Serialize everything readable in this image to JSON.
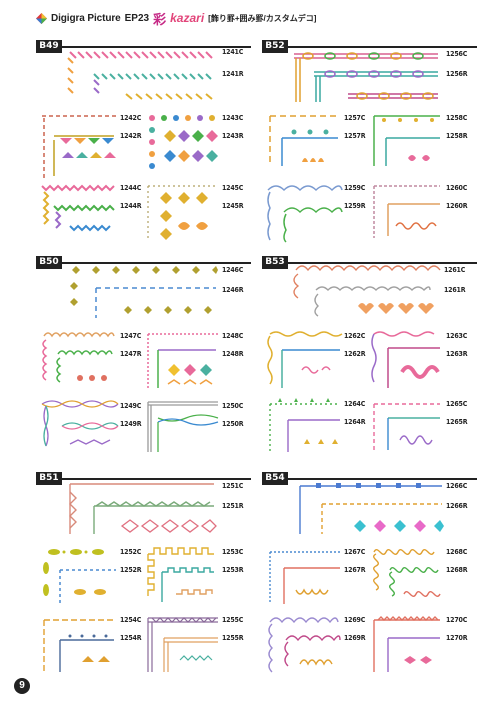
{
  "header": {
    "brand": "Digigra Picture",
    "episode": "EP23",
    "kanji": "彩",
    "kazari": "kazari",
    "subtitle": "[飾り罫+囲み罫/カスタムデコ]"
  },
  "page_number": "9",
  "colors": {
    "black": "#222222",
    "pink": "#e86a9a",
    "orange": "#f0a040",
    "yellow": "#e6c619",
    "green": "#5ab45a",
    "teal": "#3aa8a0",
    "blue": "#4a8ad0",
    "purple": "#9a6ac8",
    "olive": "#9a9a30"
  },
  "sections": [
    {
      "id": "B49",
      "label": "B49",
      "codes": [
        "1241C",
        "1241R",
        "1242C",
        "1242R",
        "1243C",
        "1243R",
        "1244C",
        "1244R",
        "1245C",
        "1245R"
      ]
    },
    {
      "id": "B52",
      "label": "B52",
      "codes": [
        "1256C",
        "1256R",
        "1257C",
        "1257R",
        "1258C",
        "1258R",
        "1259C",
        "1259R",
        "1260C",
        "1260R"
      ]
    },
    {
      "id": "B50",
      "label": "B50",
      "codes": [
        "1246C",
        "1246R",
        "1247C",
        "1247R",
        "1248C",
        "1248R",
        "1249C",
        "1249R",
        "1250C",
        "1250R"
      ]
    },
    {
      "id": "B53",
      "label": "B53",
      "codes": [
        "1261C",
        "1261R",
        "1262C",
        "1262R",
        "1263C",
        "1263R",
        "1264C",
        "1264R",
        "1265C",
        "1265R"
      ]
    },
    {
      "id": "B51",
      "label": "B51",
      "codes": [
        "1251C",
        "1251R",
        "1252C",
        "1252R",
        "1253C",
        "1253R",
        "1254C",
        "1254R",
        "1255C",
        "1255R"
      ]
    },
    {
      "id": "B54",
      "label": "B54",
      "codes": [
        "1266C",
        "1266R",
        "1267C",
        "1267R",
        "1268C",
        "1268R",
        "1269C",
        "1269R",
        "1270C",
        "1270R"
      ]
    }
  ]
}
